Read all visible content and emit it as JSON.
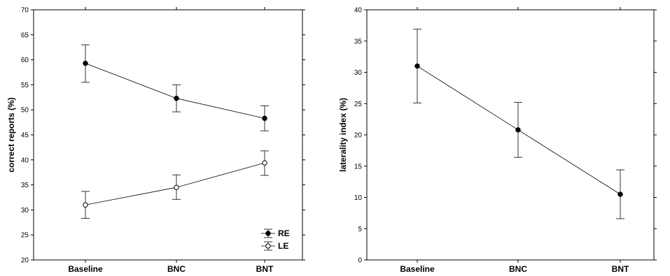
{
  "chart_data": [
    {
      "type": "line",
      "categories": [
        "Baseline",
        "BNC",
        "BNT"
      ],
      "ylabel": "correct reports (%)",
      "ylim": [
        20,
        70
      ],
      "yticks": [
        20,
        25,
        30,
        35,
        40,
        45,
        50,
        55,
        60,
        65,
        70
      ],
      "grid": false,
      "legend": "bottom-right",
      "series": [
        {
          "name": "RE",
          "marker": "filled-circle",
          "values": [
            59.3,
            52.3,
            48.3
          ],
          "error_low": [
            55.5,
            49.6,
            45.8
          ],
          "error_high": [
            63.0,
            55.0,
            50.8
          ]
        },
        {
          "name": "LE",
          "marker": "open-circle",
          "values": [
            31.0,
            34.5,
            39.4
          ],
          "error_low": [
            28.3,
            32.1,
            36.9
          ],
          "error_high": [
            33.7,
            37.0,
            41.8
          ]
        }
      ]
    },
    {
      "type": "line",
      "categories": [
        "Baseline",
        "BNC",
        "BNT"
      ],
      "ylabel": "laterality index (%)",
      "ylim": [
        0,
        40
      ],
      "yticks": [
        0,
        5,
        10,
        15,
        20,
        25,
        30,
        35,
        40
      ],
      "grid": false,
      "series": [
        {
          "marker": "filled-circle",
          "values": [
            31.0,
            20.8,
            10.5
          ],
          "error_low": [
            25.1,
            16.4,
            6.6
          ],
          "error_high": [
            36.9,
            25.2,
            14.4
          ]
        }
      ]
    }
  ]
}
